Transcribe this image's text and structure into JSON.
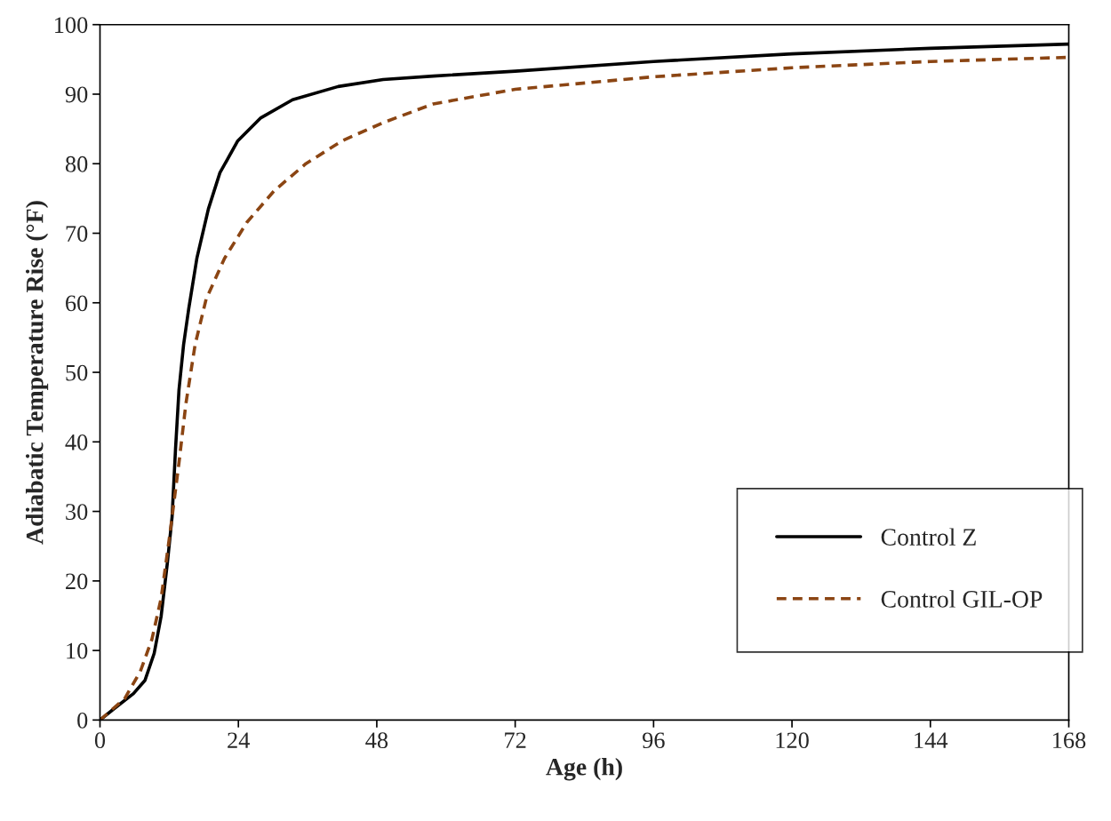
{
  "chart_data": {
    "type": "line",
    "xlabel": "Age (h)",
    "ylabel": "Adiabatic Temperature Rise (°F)",
    "xlim": [
      0,
      168
    ],
    "xticks": [
      0,
      24,
      48,
      72,
      96,
      120,
      144,
      168
    ],
    "ylim": [
      0,
      100
    ],
    "yticks": [
      0,
      10,
      20,
      30,
      40,
      50,
      60,
      70,
      80,
      90,
      100
    ],
    "grid": false,
    "legend": "bottom right",
    "marker": "none",
    "series": [
      {
        "name": "Control Z",
        "color": "#000000",
        "line_style": "solid",
        "x": [
          0,
          2.7,
          5.8,
          7.8,
          9.4,
          10.6,
          11.7,
          12.5,
          13.1,
          13.7,
          14.5,
          15.4,
          16.8,
          18.8,
          20.8,
          23.9,
          27.9,
          33.4,
          41.3,
          49.1,
          57.8,
          72,
          96,
          120,
          144,
          168
        ],
        "values": [
          0,
          1.8,
          3.8,
          5.7,
          9.6,
          14.9,
          22.7,
          29.2,
          39,
          47.5,
          54,
          59.2,
          66.4,
          73.5,
          78.7,
          83.3,
          86.6,
          89.2,
          91.1,
          92.1,
          92.6,
          93.3,
          94.7,
          95.8,
          96.6,
          97.2
        ]
      },
      {
        "name": "Control GIL-OP",
        "color": "#8b4513",
        "line_style": "dashed",
        "x": [
          0,
          4.3,
          7,
          9,
          10.6,
          12.1,
          13.7,
          14.9,
          16.5,
          18.4,
          21.6,
          25.5,
          30.2,
          35.7,
          42,
          49.1,
          57.8,
          72,
          96,
          120,
          144,
          168
        ],
        "values": [
          0,
          3.1,
          7,
          11.6,
          17.5,
          26.6,
          37,
          45.5,
          54,
          60.5,
          66.4,
          71.6,
          76.1,
          80,
          83.3,
          85.9,
          88.6,
          90.7,
          92.5,
          93.8,
          94.7,
          95.3
        ]
      }
    ]
  }
}
